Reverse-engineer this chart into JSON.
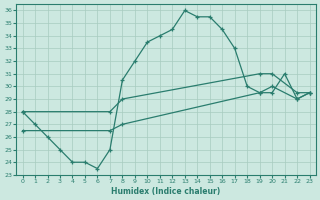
{
  "xlabel": "Humidex (Indice chaleur)",
  "ylabel": "",
  "xlim": [
    -0.5,
    23.5
  ],
  "ylim": [
    23,
    36.5
  ],
  "xticks": [
    0,
    1,
    2,
    3,
    4,
    5,
    6,
    7,
    8,
    9,
    10,
    11,
    12,
    13,
    14,
    15,
    16,
    17,
    18,
    19,
    20,
    21,
    22,
    23
  ],
  "yticks": [
    23,
    24,
    25,
    26,
    27,
    28,
    29,
    30,
    31,
    32,
    33,
    34,
    35,
    36
  ],
  "line_color": "#2a7d6e",
  "bg_color": "#cce8e0",
  "grid_color": "#a8ccbf",
  "lines": [
    {
      "x": [
        0,
        1,
        2,
        3,
        4,
        5,
        6,
        7,
        8,
        9,
        10,
        11,
        12,
        13,
        14,
        15,
        16,
        17,
        18,
        19,
        20,
        21,
        22,
        23
      ],
      "y": [
        28,
        27,
        26,
        25,
        24,
        24,
        23.5,
        25,
        30.5,
        32,
        33.5,
        34,
        34.5,
        36,
        35.5,
        35.5,
        34.5,
        33,
        30,
        29.5,
        29.5,
        31,
        29,
        29.5
      ],
      "has_markers": true
    },
    {
      "x": [
        0,
        7,
        8,
        19,
        20,
        22,
        23
      ],
      "y": [
        28,
        28,
        29,
        31,
        31,
        29.5,
        29.5
      ],
      "has_markers": true
    },
    {
      "x": [
        0,
        7,
        8,
        19,
        20,
        22,
        23
      ],
      "y": [
        26.5,
        26.5,
        27,
        29.5,
        30,
        29,
        29.5
      ],
      "has_markers": true
    }
  ]
}
